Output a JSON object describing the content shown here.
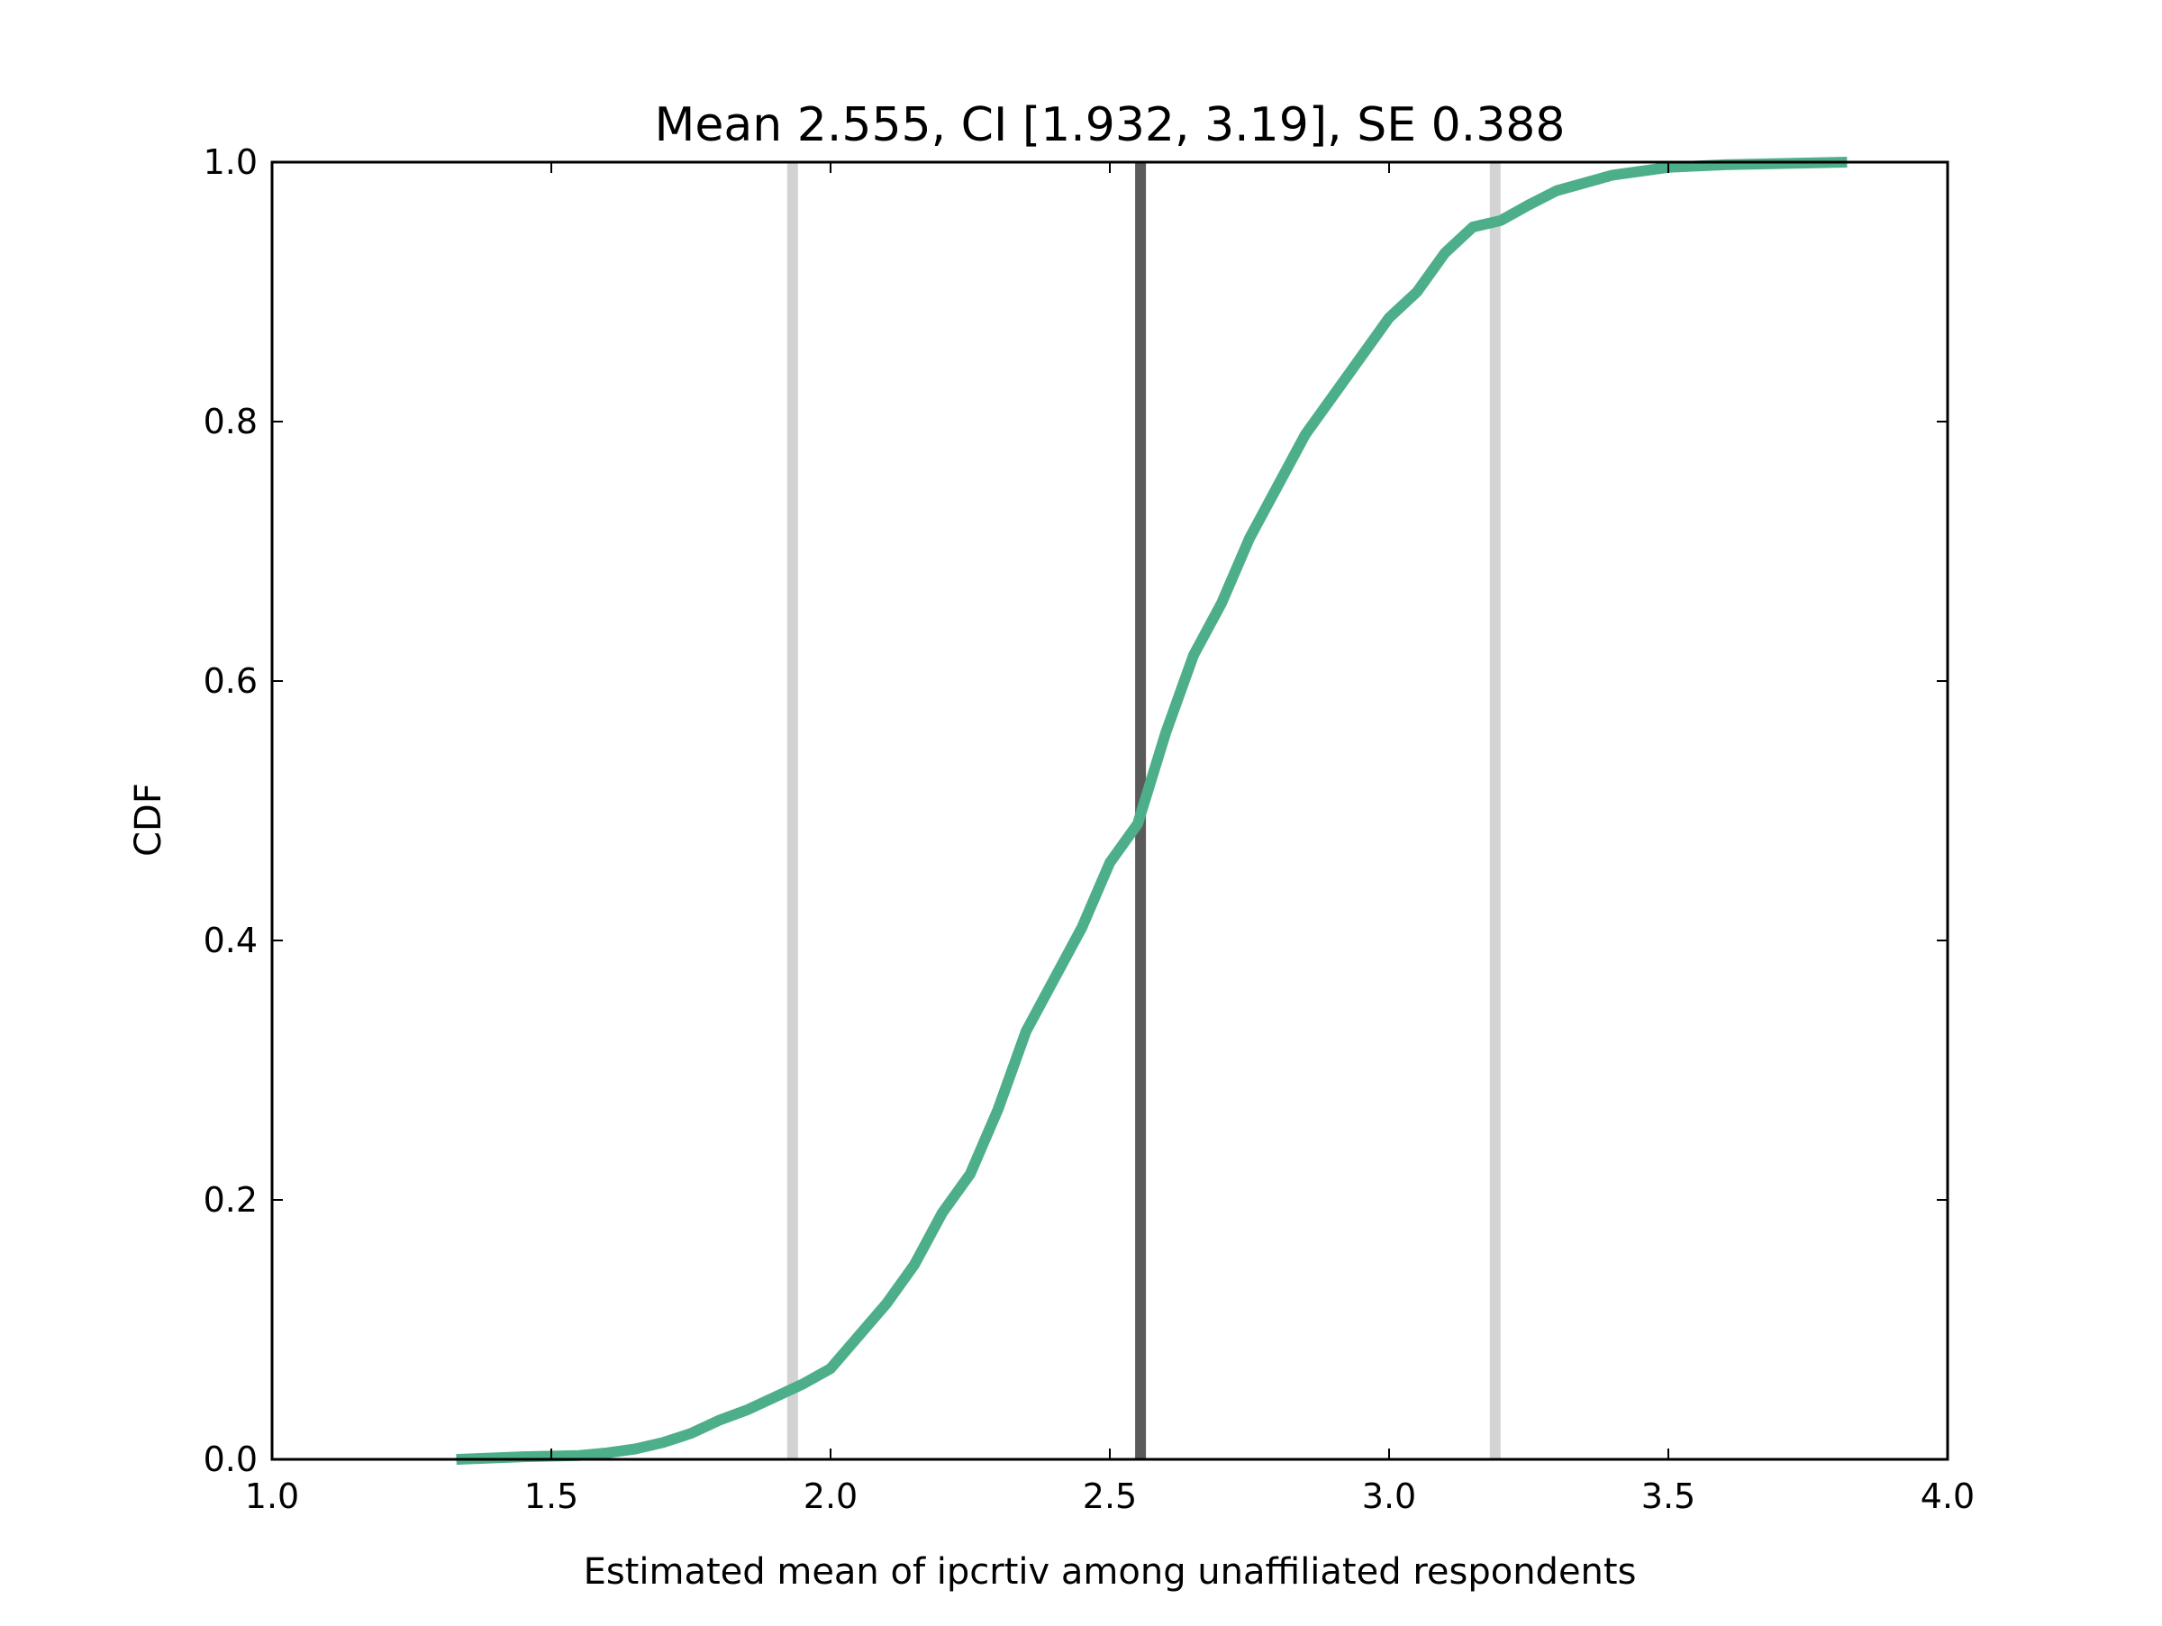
{
  "chart_data": {
    "type": "line",
    "title": "Mean 2.555, CI [1.932, 3.19], SE 0.388",
    "xlabel": "Estimated mean of ipcrtiv among unaffiliated respondents",
    "ylabel": "CDF",
    "xlim": [
      1.0,
      4.0
    ],
    "ylim": [
      0.0,
      1.0
    ],
    "x_ticks": [
      "1.0",
      "1.5",
      "2.0",
      "2.5",
      "3.0",
      "3.5",
      "4.0"
    ],
    "y_ticks": [
      "0.0",
      "0.2",
      "0.4",
      "0.6",
      "0.8",
      "1.0"
    ],
    "grid": false,
    "legend": "none",
    "reference_lines": [
      {
        "x": 1.932,
        "color": "#d3d3d3",
        "role": "ci-lower"
      },
      {
        "x": 2.555,
        "color": "#5a5a5a",
        "role": "mean"
      },
      {
        "x": 3.19,
        "color": "#d3d3d3",
        "role": "ci-upper"
      }
    ],
    "series": [
      {
        "color": "#4daf8a",
        "x": [
          1.33,
          1.45,
          1.55,
          1.6,
          1.65,
          1.7,
          1.75,
          1.8,
          1.85,
          1.9,
          1.95,
          2.0,
          2.05,
          2.1,
          2.15,
          2.2,
          2.25,
          2.3,
          2.35,
          2.4,
          2.45,
          2.5,
          2.55,
          2.6,
          2.65,
          2.7,
          2.75,
          2.8,
          2.85,
          2.9,
          2.95,
          3.0,
          3.05,
          3.1,
          3.15,
          3.2,
          3.25,
          3.3,
          3.4,
          3.5,
          3.6,
          3.82
        ],
        "y": [
          0.0,
          0.002,
          0.003,
          0.005,
          0.008,
          0.013,
          0.02,
          0.03,
          0.038,
          0.048,
          0.058,
          0.07,
          0.095,
          0.12,
          0.15,
          0.19,
          0.22,
          0.27,
          0.33,
          0.37,
          0.41,
          0.46,
          0.49,
          0.56,
          0.62,
          0.66,
          0.71,
          0.75,
          0.79,
          0.82,
          0.85,
          0.88,
          0.9,
          0.93,
          0.95,
          0.955,
          0.967,
          0.978,
          0.99,
          0.996,
          0.998,
          1.0
        ]
      }
    ]
  }
}
